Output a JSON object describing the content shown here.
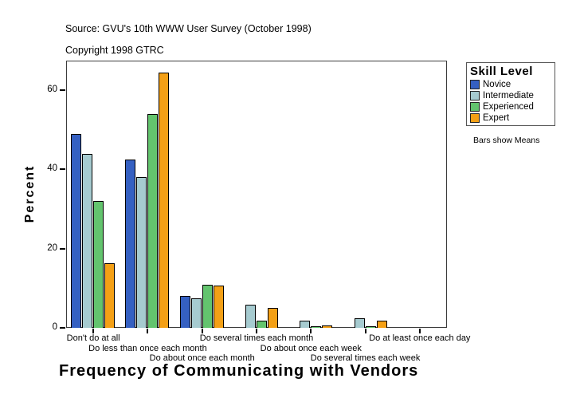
{
  "header": {
    "source": "Source: GVU's 10th WWW User Survey (October 1998)",
    "copyright": "Copyright 1998 GTRC"
  },
  "chart_data": {
    "type": "bar",
    "title": "Frequency of Communicating with Vendors",
    "ylabel": "Percent",
    "legend_title": "Skill Level",
    "note": "Bars show Means",
    "legend_position": "right",
    "grid": false,
    "categories": [
      "Don't do at all",
      "Do less than once each month",
      "Do about once each month",
      "Do several times each month",
      "Do about once each week",
      "Do several times each week",
      "Do at least once each day"
    ],
    "label_stagger_rows": [
      1,
      2,
      3,
      1,
      2,
      3,
      1
    ],
    "series": [
      {
        "name": "Novice",
        "color": "#3560c2",
        "values": [
          49,
          42.5,
          8,
          0,
          0,
          0,
          0
        ]
      },
      {
        "name": "Intermediate",
        "color": "#a6cbd0",
        "values": [
          44,
          38,
          7.5,
          5.8,
          1.9,
          2.5,
          0
        ]
      },
      {
        "name": "Experienced",
        "color": "#63c46e",
        "values": [
          32,
          54,
          10.8,
          1.9,
          0.3,
          0.3,
          0
        ]
      },
      {
        "name": "Expert",
        "color": "#f4a016",
        "values": [
          16.3,
          64.5,
          10.6,
          5,
          0.6,
          1.8,
          0
        ]
      }
    ],
    "ylim": [
      0,
      67.5
    ],
    "yticks": [
      0,
      20,
      40,
      60
    ]
  }
}
